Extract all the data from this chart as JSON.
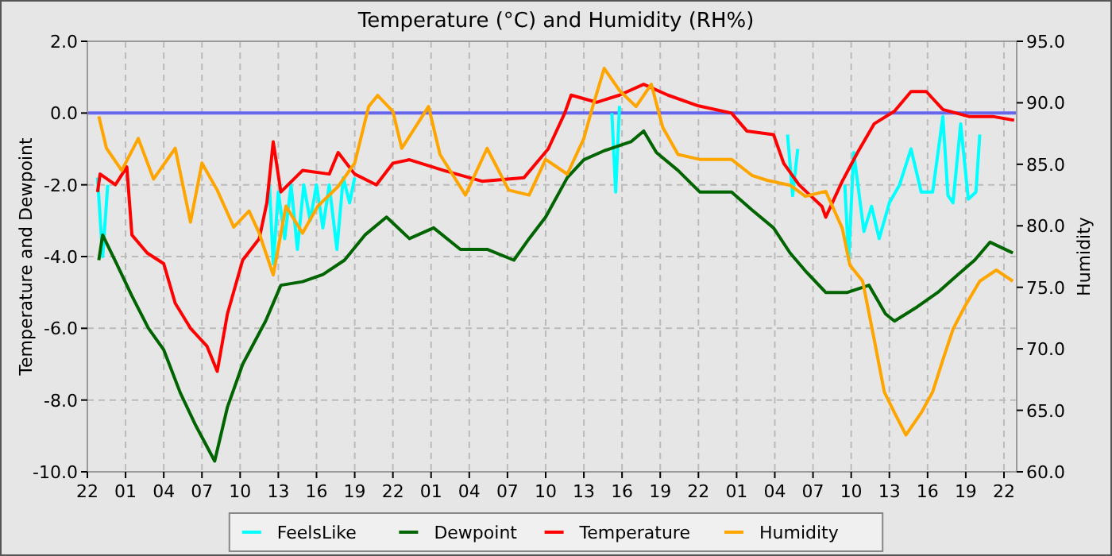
{
  "chart_data": {
    "type": "line",
    "title": "Temperature (°C) and Humidity (RH%)",
    "ylabel": "Temperature and Dewpoint",
    "y2label": "Humidity",
    "xlim": [
      "--01-01T22:00",
      "--01-04T23:00"
    ],
    "xticks": [
      {
        "value": "--01-01T22:00",
        "label": "22"
      },
      {
        "value": "--01-02T01:00",
        "label": "01"
      },
      {
        "value": "--01-02T04:00",
        "label": "04"
      },
      {
        "value": "--01-02T07:00",
        "label": "07"
      },
      {
        "value": "--01-02T10:00",
        "label": "10"
      },
      {
        "value": "--01-02T13:00",
        "label": "13"
      },
      {
        "value": "--01-02T16:00",
        "label": "16"
      },
      {
        "value": "--01-02T19:00",
        "label": "19"
      },
      {
        "value": "--01-02T22:00",
        "label": "22"
      },
      {
        "value": "--01-03T01:00",
        "label": "01"
      },
      {
        "value": "--01-03T04:00",
        "label": "04"
      },
      {
        "value": "--01-03T07:00",
        "label": "07"
      },
      {
        "value": "--01-03T10:00",
        "label": "10"
      },
      {
        "value": "--01-03T13:00",
        "label": "13"
      },
      {
        "value": "--01-03T16:00",
        "label": "16"
      },
      {
        "value": "--01-03T19:00",
        "label": "19"
      },
      {
        "value": "--01-03T22:00",
        "label": "22"
      },
      {
        "value": "--01-04T01:00",
        "label": "01"
      },
      {
        "value": "--01-04T04:00",
        "label": "04"
      },
      {
        "value": "--01-04T07:00",
        "label": "07"
      },
      {
        "value": "--01-04T10:00",
        "label": "10"
      },
      {
        "value": "--01-04T13:00",
        "label": "13"
      },
      {
        "value": "--01-04T16:00",
        "label": "16"
      },
      {
        "value": "--01-04T19:00",
        "label": "19"
      },
      {
        "value": "--01-04T22:00",
        "label": "22"
      }
    ],
    "ylim": [
      -10,
      2
    ],
    "yticks": [
      {
        "value": -10,
        "label": "-10.0"
      },
      {
        "value": -8,
        "label": "-8.0"
      },
      {
        "value": -6,
        "label": "-6.0"
      },
      {
        "value": -4,
        "label": "-4.0"
      },
      {
        "value": -2,
        "label": "-2.0"
      },
      {
        "value": 0,
        "label": "0.0"
      },
      {
        "value": 2,
        "label": "2.0"
      }
    ],
    "y2lim": [
      60,
      95
    ],
    "y2ticks": [
      {
        "value": 60,
        "label": "60.0"
      },
      {
        "value": 65,
        "label": "65.0"
      },
      {
        "value": 70,
        "label": "70.0"
      },
      {
        "value": 75,
        "label": "75.0"
      },
      {
        "value": 80,
        "label": "80.0"
      },
      {
        "value": 85,
        "label": "85.0"
      },
      {
        "value": 90,
        "label": "90.0"
      },
      {
        "value": 95,
        "label": "95.0"
      }
    ],
    "grid": true,
    "legend": "bottom",
    "marker": "none",
    "line_style": "solid",
    "ref_lines": [
      {
        "axis": "y",
        "value": 0,
        "color": "#6666ee"
      }
    ],
    "series": [
      {
        "name": "FeelsLike",
        "color": "#00ffff",
        "x": [
          "--01-01T22:48",
          "--01-01T23:12",
          "--01-01T23:36",
          "--01-02T00:00",
          "--01-02T12:18",
          "--01-02T12:36",
          "--01-02T13:00",
          "--01-02T13:30",
          "--01-02T14:00",
          "--01-02T14:30",
          "--01-02T15:00",
          "--01-02T15:30",
          "--01-02T16:00",
          "--01-02T16:30",
          "--01-02T17:00",
          "--01-02T17:36",
          "--01-02T18:06",
          "--01-02T18:36",
          "--01-02T19:00",
          "--01-02T19:30",
          "--01-03T15:12",
          "--01-03T15:30",
          "--01-03T15:48",
          "--01-03T16:30",
          "--01-04T05:00",
          "--01-04T05:24",
          "--01-04T05:48",
          "--01-04T06:30",
          "--01-04T09:30",
          "--01-04T09:48",
          "--01-04T10:12",
          "--01-04T11:00",
          "--01-04T11:36",
          "--01-04T12:12",
          "--01-04T13:00",
          "--01-04T13:48",
          "--01-04T14:42",
          "--01-04T15:30",
          "--01-04T16:24",
          "--01-04T17:12",
          "--01-04T17:36",
          "--01-04T18:00",
          "--01-04T18:36",
          "--01-04T19:12",
          "--01-04T19:48",
          "--01-04T20:06"
        ],
        "values": [
          -1.8,
          -4.0,
          -2.0,
          null,
          -2.0,
          -4.2,
          -2.2,
          -3.5,
          -2.0,
          -3.8,
          -2.0,
          -3.0,
          -2.0,
          -3.2,
          -2.0,
          -3.8,
          -1.8,
          -2.5,
          -1.8,
          null,
          0.0,
          -2.2,
          0.2,
          null,
          -0.6,
          -2.3,
          -1.0,
          null,
          -2.0,
          -4.1,
          -1.1,
          -3.3,
          -2.6,
          -3.5,
          -2.5,
          -2.0,
          -1.0,
          -2.2,
          -2.2,
          -0.1,
          -2.3,
          -2.5,
          -0.3,
          -2.4,
          -2.2,
          -0.6
        ]
      },
      {
        "name": "Dewpoint",
        "color": "#006400",
        "x": [
          "--01-01T22:54",
          "--01-01T23:12",
          "--01-02T00:18",
          "--01-02T01:30",
          "--01-02T02:48",
          "--01-02T04:00",
          "--01-02T05:18",
          "--01-02T06:30",
          "--01-02T08:00",
          "--01-02T09:00",
          "--01-02T10:12",
          "--01-02T12:00",
          "--01-02T13:12",
          "--01-02T14:54",
          "--01-02T16:30",
          "--01-02T18:12",
          "--01-02T19:48",
          "--01-02T21:30",
          "--01-02T23:18",
          "--01-03T01:12",
          "--01-03T03:18",
          "--01-03T05:24",
          "--01-03T07:30",
          "--01-03T08:42",
          "--01-03T10:00",
          "--01-03T11:42",
          "--01-03T13:00",
          "--01-03T14:36",
          "--01-03T16:42",
          "--01-03T17:42",
          "--01-03T18:42",
          "--01-03T20:24",
          "--01-03T22:06",
          "--01-04T00:36",
          "--01-04T02:12",
          "--01-04T03:54",
          "--01-04T05:12",
          "--01-04T06:24",
          "--01-04T08:00",
          "--01-04T09:42",
          "--01-04T11:24",
          "--01-04T12:42",
          "--01-04T13:24",
          "--01-04T15:12",
          "--01-04T16:48",
          "--01-04T18:24",
          "--01-04T19:42",
          "--01-04T20:54",
          "--01-04T22:42"
        ],
        "values": [
          -4.1,
          -3.4,
          -4.2,
          -5.1,
          -6.0,
          -6.6,
          -7.8,
          -8.7,
          -9.7,
          -8.2,
          -7.0,
          -5.8,
          -4.8,
          -4.7,
          -4.5,
          -4.1,
          -3.4,
          -2.9,
          -3.5,
          -3.2,
          -3.8,
          -3.8,
          -4.1,
          -3.5,
          -2.9,
          -1.8,
          -1.3,
          -1.05,
          -0.8,
          -0.5,
          -1.1,
          -1.6,
          -2.2,
          -2.2,
          -2.7,
          -3.2,
          -3.9,
          -4.4,
          -5.0,
          -5.0,
          -4.8,
          -5.6,
          -5.8,
          -5.4,
          -5.0,
          -4.5,
          -4.1,
          -3.6,
          -3.9
        ]
      },
      {
        "name": "Temperature",
        "color": "#ff0000",
        "x": [
          "--01-01T22:48",
          "--01-01T23:00",
          "--01-02T00:12",
          "--01-02T01:06",
          "--01-02T01:30",
          "--01-02T02:42",
          "--01-02T04:00",
          "--01-02T04:54",
          "--01-02T06:06",
          "--01-02T07:24",
          "--01-02T08:12",
          "--01-02T09:00",
          "--01-02T10:12",
          "--01-02T11:30",
          "--01-02T12:06",
          "--01-02T12:36",
          "--01-02T13:12",
          "--01-02T14:54",
          "--01-02T17:00",
          "--01-02T17:42",
          "--01-02T19:00",
          "--01-02T20:42",
          "--01-02T22:00",
          "--01-02T23:18",
          "--01-03T02:00",
          "--01-03T05:00",
          "--01-03T08:18",
          "--01-03T10:12",
          "--01-03T11:30",
          "--01-03T12:00",
          "--01-03T14:00",
          "--01-03T15:48",
          "--01-03T17:42",
          "--01-03T19:36",
          "--01-03T22:00",
          "--01-04T00:36",
          "--01-04T01:48",
          "--01-04T03:54",
          "--01-04T04:42",
          "--01-04T05:54",
          "--01-04T07:42",
          "--01-04T08:00",
          "--01-04T09:18",
          "--01-04T10:30",
          "--01-04T11:48",
          "--01-04T13:24",
          "--01-04T14:42",
          "--01-04T15:54",
          "--01-04T17:12",
          "--01-04T19:18",
          "--01-04T21:12",
          "--01-04T22:48"
        ],
        "values": [
          -2.2,
          -1.7,
          -2.0,
          -1.5,
          -3.4,
          -3.9,
          -4.2,
          -5.3,
          -6.0,
          -6.5,
          -7.2,
          -5.6,
          -4.1,
          -3.5,
          -2.5,
          -0.8,
          -2.2,
          -1.6,
          -1.7,
          -1.1,
          -1.7,
          -2.0,
          -1.4,
          -1.3,
          -1.6,
          -1.9,
          -1.8,
          -1.0,
          0.0,
          0.5,
          0.3,
          0.5,
          0.8,
          0.5,
          0.2,
          0.0,
          -0.5,
          -0.6,
          -1.4,
          -2.0,
          -2.6,
          -2.9,
          -1.9,
          -1.1,
          -0.3,
          0.05,
          0.6,
          0.6,
          0.1,
          -0.1,
          -0.1,
          -0.2
        ]
      },
      {
        "name": "Humidity",
        "color": "#ffa500",
        "axis": "y2",
        "x": [
          "--01-01T22:54",
          "--01-01T23:30",
          "--01-02T00:42",
          "--01-02T02:00",
          "--01-02T03:12",
          "--01-02T04:54",
          "--01-02T06:06",
          "--01-02T07:00",
          "--01-02T08:12",
          "--01-02T09:30",
          "--01-02T10:42",
          "--01-02T11:30",
          "--01-02T12:36",
          "--01-02T13:36",
          "--01-02T14:54",
          "--01-02T16:06",
          "--01-02T17:42",
          "--01-02T19:00",
          "--01-02T20:06",
          "--01-02T20:48",
          "--01-02T22:00",
          "--01-02T22:42",
          "--01-03T00:48",
          "--01-03T01:42",
          "--01-03T03:42",
          "--01-03T05:24",
          "--01-03T07:06",
          "--01-03T08:42",
          "--01-03T10:00",
          "--01-03T11:42",
          "--01-03T13:00",
          "--01-03T13:42",
          "--01-03T14:36",
          "--01-03T15:48",
          "--01-03T17:06",
          "--01-03T18:18",
          "--01-03T19:12",
          "--01-03T20:24",
          "--01-03T22:06",
          "--01-03T23:42",
          "--01-04T00:36",
          "--01-04T02:12",
          "--01-04T03:24",
          "--01-04T05:12",
          "--01-04T06:24",
          "--01-04T08:00",
          "--01-04T09:18",
          "--01-04T09:54",
          "--01-04T10:54",
          "--01-04T11:48",
          "--01-04T12:36",
          "--01-04T13:24",
          "--01-04T14:18",
          "--01-04T15:30",
          "--01-04T16:24",
          "--01-04T17:12",
          "--01-04T18:00",
          "--01-04T18:54",
          "--01-04T20:06",
          "--01-04T21:24",
          "--01-04T22:42"
        ],
        "values": [
          88.9,
          86.3,
          84.5,
          87.1,
          83.8,
          86.3,
          80.3,
          85.1,
          82.9,
          79.9,
          81.2,
          79.4,
          76.0,
          81.6,
          79.4,
          81.6,
          83.2,
          85.1,
          89.7,
          90.6,
          89.3,
          86.3,
          89.7,
          85.8,
          82.5,
          86.3,
          82.9,
          82.5,
          85.4,
          84.2,
          87.1,
          89.7,
          92.8,
          91.0,
          89.7,
          91.5,
          88.0,
          85.8,
          85.4,
          85.4,
          85.4,
          84.1,
          83.7,
          83.3,
          82.4,
          82.8,
          79.8,
          76.8,
          75.5,
          70.8,
          66.5,
          64.8,
          63.0,
          64.8,
          66.5,
          69.1,
          71.6,
          73.4,
          75.5,
          76.4,
          75.5
        ]
      }
    ]
  }
}
